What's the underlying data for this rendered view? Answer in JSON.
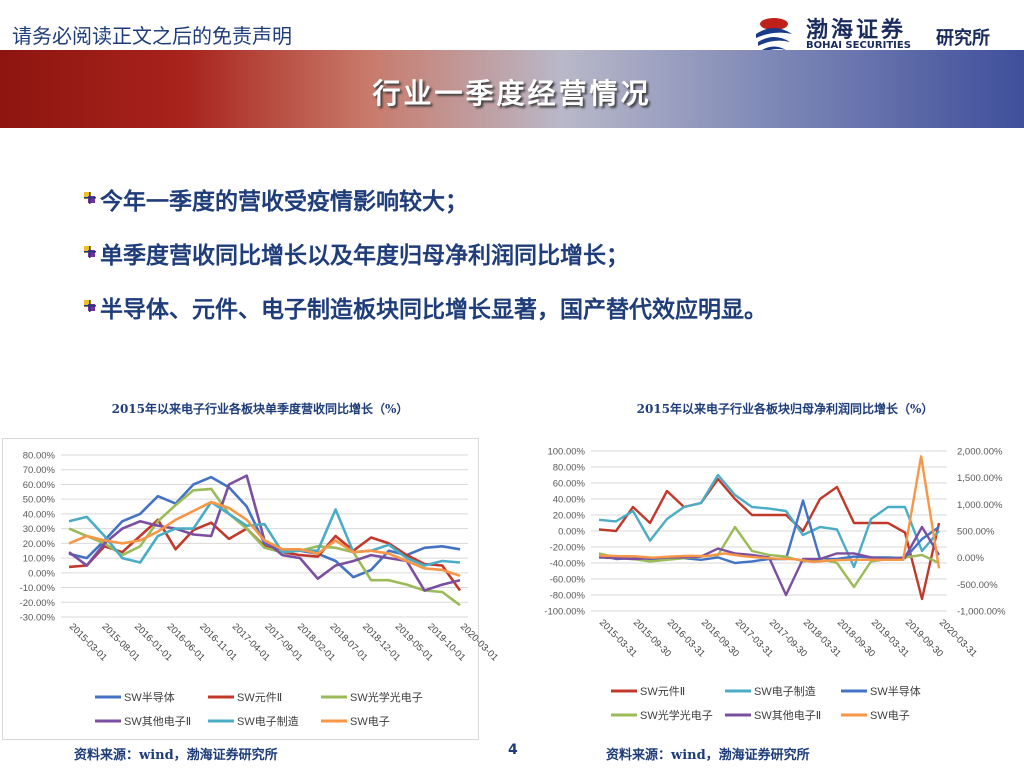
{
  "header": {
    "disclaimer": "请务必阅读正文之后的免责声明",
    "logo_cn": "渤海证券",
    "logo_en": "BOHAI SECURITIES",
    "logo_dept": "研究所",
    "slide_title": "行业一季度经营情况"
  },
  "bullets": [
    "今年一季度的营收受疫情影响较大；",
    "单季度营收同比增长以及年度归母净利润同比增长；",
    "半导体、元件、电子制造板块同比增长显著，国产替代效应明显。"
  ],
  "footer": {
    "source_left": "资料来源：wind，渤海证券研究所",
    "source_right": "资料来源：wind，渤海证券研究所",
    "page_number": "4"
  },
  "colors": {
    "半导体": "#4472c4",
    "元件": "#c0392b",
    "光学光电子": "#9bbb59",
    "其他电子": "#7b4fa0",
    "电子制造": "#4bacc6",
    "电子": "#f79646"
  },
  "chart_data": [
    {
      "type": "line",
      "title": "2015年以来电子行业各板块单季度营收同比增长（%）",
      "x_tick_labels": [
        "2015-03-01",
        "2015-08-01",
        "2016-01-01",
        "2016-06-01",
        "2016-11-01",
        "2017-04-01",
        "2017-09-01",
        "2018-02-01",
        "2018-07-01",
        "2018-12-01",
        "2019-05-01",
        "2019-10-01",
        "2020-03-01"
      ],
      "y_tick_labels": [
        "80.00%",
        "70.00%",
        "60.00%",
        "50.00%",
        "40.00%",
        "30.00%",
        "20.00%",
        "10.00%",
        "0.00%",
        "-10.00%",
        "-20.00%",
        "-30.00%"
      ],
      "ylim": [
        -30,
        80
      ],
      "grid": true,
      "legend_position": "bottom",
      "series": [
        {
          "name": "SW半导体",
          "color_key": "半导体",
          "values": [
            13,
            10,
            22,
            35,
            40,
            52,
            47,
            60,
            65,
            58,
            45,
            20,
            15,
            15,
            13,
            8,
            -3,
            2,
            15,
            12,
            17,
            18,
            16
          ]
        },
        {
          "name": "SW元件Ⅱ",
          "color_key": "元件",
          "values": [
            4,
            5,
            18,
            14,
            25,
            36,
            16,
            29,
            34,
            23,
            30,
            18,
            14,
            12,
            11,
            25,
            15,
            24,
            20,
            12,
            6,
            5,
            -12
          ]
        },
        {
          "name": "SW光学光电子",
          "color_key": "光学光电子",
          "values": [
            30,
            25,
            20,
            12,
            18,
            35,
            46,
            56,
            57,
            40,
            30,
            17,
            14,
            15,
            18,
            17,
            14,
            -5,
            -5,
            -8,
            -12,
            -13,
            -22
          ]
        },
        {
          "name": "SW其他电子Ⅱ",
          "color_key": "其他电子",
          "values": [
            14,
            5,
            20,
            30,
            35,
            32,
            30,
            26,
            25,
            60,
            66,
            22,
            12,
            10,
            -4,
            5,
            8,
            12,
            10,
            8,
            -12,
            -8,
            -5
          ]
        },
        {
          "name": "SW电子制造",
          "color_key": "电子制造",
          "values": [
            35,
            38,
            25,
            10,
            7,
            25,
            30,
            30,
            48,
            40,
            32,
            33,
            14,
            15,
            15,
            43,
            14,
            15,
            19,
            10,
            5,
            8,
            7
          ]
        },
        {
          "name": "SW电子",
          "color_key": "电子",
          "values": [
            20,
            25,
            22,
            20,
            22,
            28,
            36,
            42,
            48,
            44,
            36,
            22,
            16,
            16,
            13,
            22,
            14,
            15,
            13,
            8,
            3,
            2,
            -2
          ]
        }
      ]
    },
    {
      "type": "line",
      "title": "2015年以来电子行业各板块归母净利润同比增长（%）",
      "x_tick_labels": [
        "2015-03-31",
        "2015-09-30",
        "2016-03-31",
        "2016-09-30",
        "2017-03-31",
        "2017-09-30",
        "2018-03-31",
        "2018-09-30",
        "2019-03-31",
        "2019-09-30",
        "2020-03-31"
      ],
      "y_left_tick_labels": [
        "100.00%",
        "80.00%",
        "60.00%",
        "40.00%",
        "20.00%",
        "0.00%",
        "-20.00%",
        "-40.00%",
        "-60.00%",
        "-80.00%",
        "-100.00%"
      ],
      "y_right_tick_labels": [
        "2,000.00%",
        "1,500.00%",
        "1,000.00%",
        "500.00%",
        "0.00%",
        "-500.00%",
        "-1,000.00%"
      ],
      "ylim_left": [
        -100,
        100
      ],
      "ylim_right": [
        -1000,
        2000
      ],
      "grid": true,
      "legend_position": "bottom",
      "series": [
        {
          "name": "SW元件Ⅱ",
          "color_key": "元件",
          "axis": "left",
          "values": [
            2,
            0,
            30,
            10,
            50,
            30,
            35,
            65,
            40,
            20,
            20,
            20,
            0,
            40,
            55,
            10,
            10,
            10,
            -2,
            -85,
            10
          ]
        },
        {
          "name": "SW电子制造",
          "color_key": "电子制造",
          "axis": "left",
          "values": [
            14,
            12,
            25,
            -12,
            15,
            30,
            35,
            70,
            45,
            30,
            28,
            25,
            -5,
            5,
            2,
            -45,
            15,
            30,
            30,
            -25,
            0
          ]
        },
        {
          "name": "SW半导体",
          "color_key": "半导体",
          "axis": "left",
          "values": [
            -30,
            -35,
            -34,
            -35,
            -35,
            -34,
            -36,
            -33,
            -40,
            -38,
            -35,
            -35,
            38,
            -35,
            -35,
            -32,
            -33,
            -33,
            -34,
            -10,
            5
          ]
        },
        {
          "name": "SW光学光电子",
          "color_key": "光学光电子",
          "axis": "left",
          "values": [
            -28,
            -33,
            -35,
            -38,
            -36,
            -34,
            -32,
            -30,
            5,
            -25,
            -30,
            -32,
            -38,
            -35,
            -40,
            -70,
            -38,
            -35,
            -33,
            -30,
            -40
          ]
        },
        {
          "name": "SW其他电子Ⅱ",
          "color_key": "其他电子",
          "axis": "left",
          "values": [
            -33,
            -34,
            -35,
            -34,
            -33,
            -33,
            -32,
            -22,
            -28,
            -30,
            -33,
            -80,
            -35,
            -35,
            -28,
            -28,
            -33,
            -35,
            -33,
            5,
            -30
          ]
        },
        {
          "name": "SW电子",
          "color_key": "电子",
          "axis": "right",
          "values": [
            40,
            30,
            25,
            0,
            20,
            35,
            30,
            80,
            30,
            0,
            -20,
            -30,
            -80,
            -50,
            -40,
            -40,
            -40,
            -40,
            1900,
            -200
          ]
        }
      ]
    }
  ]
}
